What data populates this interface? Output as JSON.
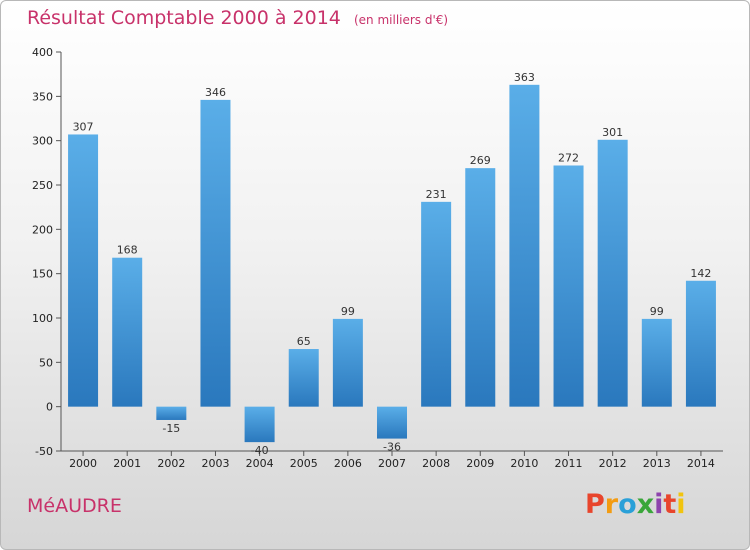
{
  "header": {
    "title": "Résultat Comptable 2000 à 2014",
    "unit": "(en milliers d'€)"
  },
  "footer": {
    "location": "MéAUDRE",
    "logo_text": "Proxiti",
    "logo_colors": [
      "#e8452c",
      "#f39c12",
      "#2aa0d8",
      "#3aa63a",
      "#8e44ad",
      "#e8452c",
      "#f1c40f"
    ]
  },
  "colors": {
    "title": "#c8326a",
    "bar_light": "#5aaee8",
    "bar_dark": "#2a78bd",
    "grid": "#c0c0c0"
  },
  "chart_data": {
    "type": "bar",
    "title": "Résultat Comptable 2000 à 2014",
    "subtitle": "(en milliers d'€)",
    "xlabel": "",
    "ylabel": "",
    "categories": [
      "2000",
      "2001",
      "2002",
      "2003",
      "2004",
      "2005",
      "2006",
      "2007",
      "2008",
      "2009",
      "2010",
      "2011",
      "2012",
      "2013",
      "2014"
    ],
    "values": [
      307,
      168,
      -15,
      346,
      -40,
      65,
      99,
      -36,
      231,
      269,
      363,
      272,
      301,
      99,
      142
    ],
    "data_labels": [
      "307",
      "168",
      "-15",
      "346",
      "-40",
      "65",
      "99",
      "-36",
      "231",
      "269",
      "363",
      "272",
      "301",
      "99",
      "142"
    ],
    "ylim": [
      -50,
      400
    ],
    "yticks": [
      -50,
      0,
      50,
      100,
      150,
      200,
      250,
      300,
      350,
      400
    ],
    "ytick_labels": [
      "-50",
      "0",
      "50",
      "100",
      "150",
      "200",
      "250",
      "300",
      "350",
      "400"
    ],
    "grid": false
  }
}
